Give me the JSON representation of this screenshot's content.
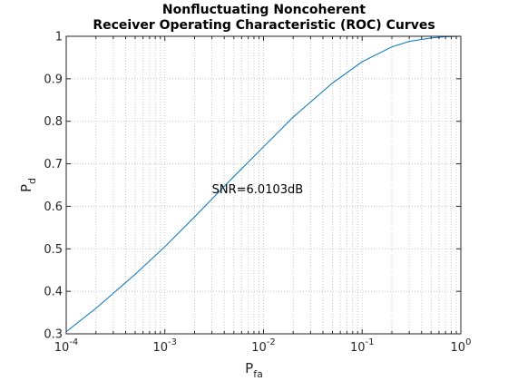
{
  "chart_data": {
    "type": "line",
    "title_lines": [
      "Nonfluctuating Noncoherent",
      "Receiver Operating Characteristic (ROC) Curves"
    ],
    "xlabel": "P",
    "xlabel_sub": "fa",
    "ylabel": "P",
    "ylabel_sub": "d",
    "xscale": "log",
    "xlim": [
      0.0001,
      1
    ],
    "ylim": [
      0.3,
      1
    ],
    "grid": "major+minor, dotted",
    "xtick_labels": [
      {
        "value": 0.0001,
        "base": "10",
        "exp": "-4"
      },
      {
        "value": 0.001,
        "base": "10",
        "exp": "-3"
      },
      {
        "value": 0.01,
        "base": "10",
        "exp": "-2"
      },
      {
        "value": 0.1,
        "base": "10",
        "exp": "-1"
      },
      {
        "value": 1,
        "base": "10",
        "exp": "0"
      }
    ],
    "yticks": [
      0.3,
      0.4,
      0.5,
      0.6,
      0.7,
      0.8,
      0.9,
      1
    ],
    "ytick_labels": [
      "0.3",
      "0.4",
      "0.5",
      "0.6",
      "0.7",
      "0.8",
      "0.9",
      "1"
    ],
    "annotation": {
      "text": "SNR=6.0103dB",
      "x": 0.003,
      "y": 0.64
    },
    "series": [
      {
        "color": "#0072bd",
        "x": [
          0.0001,
          0.0002,
          0.0005,
          0.001,
          0.002,
          0.005,
          0.01,
          0.02,
          0.05,
          0.1,
          0.2,
          0.3,
          0.5,
          0.7,
          1
        ],
        "y": [
          0.305,
          0.36,
          0.44,
          0.505,
          0.575,
          0.67,
          0.74,
          0.81,
          0.89,
          0.94,
          0.975,
          0.988,
          0.996,
          0.999,
          1.0
        ]
      }
    ]
  },
  "colors": {
    "axes_edge": "#262626",
    "grid": "#c8c8c8",
    "line": "#0072bd"
  }
}
